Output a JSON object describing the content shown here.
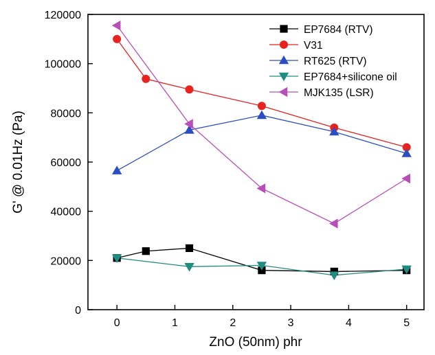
{
  "chart_data": {
    "type": "line",
    "title": "",
    "xlabel": "ZnO (50nm) phr",
    "ylabel": "G' @ 0.01Hz (Pa)",
    "xlim": [
      -0.5,
      5.3
    ],
    "ylim": [
      0,
      120000
    ],
    "x_ticks": [
      0,
      1,
      2,
      3,
      4,
      5
    ],
    "y_ticks": [
      0,
      20000,
      40000,
      60000,
      80000,
      100000,
      120000
    ],
    "grid": false,
    "legend_position": "top-right",
    "series": [
      {
        "name": "EP7684 (RTV)",
        "marker": "square",
        "color": "#000000",
        "x": [
          0,
          0.5,
          1.25,
          2.5,
          3.75,
          5
        ],
        "y": [
          21000,
          23800,
          25000,
          16000,
          15500,
          16000
        ]
      },
      {
        "name": "V31",
        "marker": "circle",
        "color": "#e8231f",
        "x": [
          0,
          0.5,
          1.25,
          2.5,
          3.75,
          5
        ],
        "y": [
          110000,
          93800,
          89500,
          82800,
          74000,
          66000
        ]
      },
      {
        "name": "RT625 (RTV)",
        "marker": "triangle-up",
        "color": "#2b4ec2",
        "x": [
          0,
          1.25,
          2.5,
          3.75,
          5
        ],
        "y": [
          56500,
          73000,
          79000,
          72300,
          63500
        ]
      },
      {
        "name": "EP7684+silicone oil",
        "marker": "triangle-down",
        "color": "#1f8c80",
        "x": [
          0,
          1.25,
          2.5,
          3.75,
          5
        ],
        "y": [
          21000,
          17500,
          18000,
          14000,
          16500
        ]
      },
      {
        "name": "MJK135 (LSR)",
        "marker": "triangle-left",
        "color": "#b84fb8",
        "x": [
          0,
          1.25,
          2.5,
          3.75,
          5
        ],
        "y": [
          115500,
          75500,
          49300,
          35000,
          53300
        ]
      }
    ]
  }
}
